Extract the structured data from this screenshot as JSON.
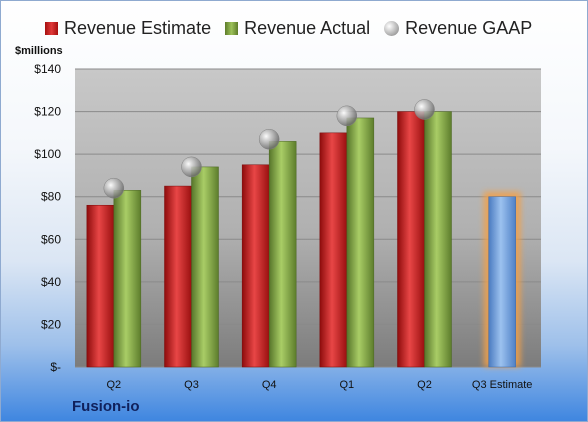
{
  "company": "Fusion-io",
  "colors": {
    "estimate": "#c81e1e",
    "actual": "#7fa33d",
    "gaap": "#b0b0b0",
    "forecast": "#6f9fdc",
    "forecast_glow": "#f2a04a"
  },
  "chart_data": {
    "type": "bar",
    "categories": [
      "Q2",
      "Q3",
      "Q4",
      "Q1",
      "Q2",
      "Q3 Estimate"
    ],
    "series": [
      {
        "name": "Revenue Estimate",
        "values": [
          76,
          85,
          95,
          110,
          120,
          null
        ]
      },
      {
        "name": "Revenue Actual",
        "values": [
          83,
          94,
          106,
          117,
          120,
          null
        ]
      },
      {
        "name": "Revenue GAAP",
        "values": [
          84,
          94,
          107,
          118,
          121,
          null
        ]
      }
    ],
    "forecast": {
      "category": "Q3 Estimate",
      "value": 80
    },
    "ylabel": "$millions",
    "ylim": [
      0,
      140
    ],
    "yticks": [
      0,
      20,
      40,
      60,
      80,
      100,
      120,
      140
    ],
    "ytick_labels": [
      "$-",
      "$20",
      "$40",
      "$60",
      "$80",
      "$100",
      "$120",
      "$140"
    ],
    "legend_position": "top",
    "grid": true
  }
}
